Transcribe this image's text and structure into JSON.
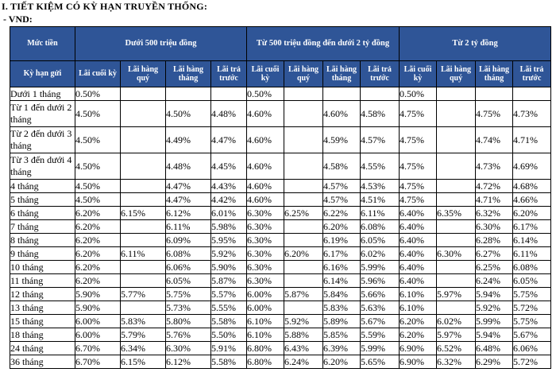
{
  "heading": "I. TIẾT KIỆM CÓ KỲ HẠN TRUYỀN THỐNG:",
  "subheading": "- VND:",
  "table": {
    "amount_label": "Mức tiền",
    "term_label": "Kỳ hạn gửi",
    "bands": [
      "Dưới 500 triệu đồng",
      "Từ 500 triệu đồng đến dưới 2 tỷ đồng",
      "Từ 2 tỷ đồng"
    ],
    "subcolumns": [
      "Lãi cuối kỳ",
      "Lãi hàng quý",
      "Lãi hàng tháng",
      "Lãi trả trước"
    ],
    "rows": [
      {
        "term": "Dưới 1 tháng",
        "values": [
          "0.50%",
          "",
          "",
          "",
          "0.50%",
          "",
          "",
          "",
          "0.50%",
          "",
          "",
          ""
        ]
      },
      {
        "term": "Từ 1 đến dưới 2 tháng",
        "values": [
          "4.50%",
          "",
          "4.50%",
          "4.48%",
          "4.60%",
          "",
          "4.60%",
          "4.58%",
          "4.75%",
          "",
          "4.75%",
          "4.73%"
        ]
      },
      {
        "term": "Từ 2 đến dưới 3 tháng",
        "values": [
          "4.50%",
          "",
          "4.49%",
          "4.47%",
          "4.60%",
          "",
          "4.59%",
          "4.57%",
          "4.75%",
          "",
          "4.74%",
          "4.71%"
        ]
      },
      {
        "term": "Từ 3 đến dưới 4 tháng",
        "values": [
          "4.50%",
          "",
          "4.48%",
          "4.45%",
          "4.60%",
          "",
          "4.58%",
          "4.55%",
          "4.75%",
          "",
          "4.73%",
          "4.69%"
        ]
      },
      {
        "term": "4 tháng",
        "values": [
          "4.50%",
          "",
          "4.47%",
          "4.43%",
          "4.60%",
          "",
          "4.57%",
          "4.53%",
          "4.75%",
          "",
          "4.72%",
          "4.68%"
        ]
      },
      {
        "term": "5 tháng",
        "values": [
          "4.50%",
          "",
          "4.47%",
          "4.42%",
          "4.60%",
          "",
          "4.57%",
          "4.51%",
          "4.75%",
          "",
          "4.71%",
          "4.66%"
        ]
      },
      {
        "term": "6 tháng",
        "values": [
          "6.20%",
          "6.15%",
          "6.12%",
          "6.01%",
          "6.30%",
          "6.25%",
          "6.22%",
          "6.11%",
          "6.40%",
          "6.35%",
          "6.32%",
          "6.20%"
        ]
      },
      {
        "term": "7 tháng",
        "values": [
          "6.20%",
          "",
          "6.11%",
          "5.98%",
          "6.30%",
          "",
          "6.20%",
          "6.08%",
          "6.40%",
          "",
          "6.30%",
          "6.17%"
        ]
      },
      {
        "term": "8 tháng",
        "values": [
          "6.20%",
          "",
          "6.09%",
          "5.95%",
          "6.30%",
          "",
          "6.19%",
          "6.05%",
          "6.40%",
          "",
          "6.28%",
          "6.14%"
        ]
      },
      {
        "term": "9 tháng",
        "values": [
          "6.20%",
          "6.11%",
          "6.08%",
          "5.92%",
          "6.30%",
          "6.20%",
          "6.17%",
          "6.02%",
          "6.40%",
          "6.30%",
          "6.27%",
          "6.11%"
        ]
      },
      {
        "term": "10 tháng",
        "values": [
          "6.20%",
          "",
          "6.06%",
          "5.90%",
          "6.30%",
          "",
          "6.16%",
          "5.99%",
          "6.40%",
          "",
          "6.25%",
          "6.08%"
        ]
      },
      {
        "term": "11 tháng",
        "values": [
          "6.20%",
          "",
          "6.05%",
          "5.87%",
          "6.30%",
          "",
          "6.14%",
          "5.96%",
          "6.40%",
          "",
          "6.24%",
          "6.05%"
        ]
      },
      {
        "term": "12 tháng",
        "values": [
          "5.90%",
          "5.77%",
          "5.75%",
          "5.57%",
          "6.00%",
          "5.87%",
          "5.84%",
          "5.66%",
          "6.10%",
          "5.97%",
          "5.94%",
          "5.75%"
        ]
      },
      {
        "term": "13 tháng",
        "values": [
          "5.90%",
          "",
          "5.73%",
          "5.55%",
          "6.00%",
          "",
          "5.83%",
          "5.63%",
          "6.10%",
          "",
          "5.92%",
          "5.72%"
        ]
      },
      {
        "term": "15 tháng",
        "values": [
          "6.00%",
          "5.83%",
          "5.80%",
          "5.58%",
          "6.10%",
          "5.92%",
          "5.89%",
          "5.67%",
          "6.20%",
          "6.02%",
          "5.99%",
          "5.75%"
        ]
      },
      {
        "term": "18 tháng",
        "values": [
          "6.00%",
          "5.79%",
          "5.76%",
          "5.50%",
          "6.10%",
          "5.88%",
          "5.85%",
          "5.59%",
          "6.20%",
          "5.97%",
          "5.94%",
          "5.67%"
        ]
      },
      {
        "term": "24 tháng",
        "values": [
          "6.70%",
          "6.34%",
          "6.30%",
          "5.91%",
          "6.80%",
          "6.43%",
          "6.39%",
          "5.99%",
          "6.90%",
          "6.52%",
          "6.48%",
          "6.06%"
        ]
      },
      {
        "term": "36 tháng",
        "values": [
          "6.70%",
          "6.15%",
          "6.12%",
          "5.58%",
          "6.80%",
          "6.24%",
          "6.20%",
          "5.65%",
          "6.90%",
          "6.32%",
          "6.29%",
          "5.72%"
        ]
      }
    ]
  }
}
